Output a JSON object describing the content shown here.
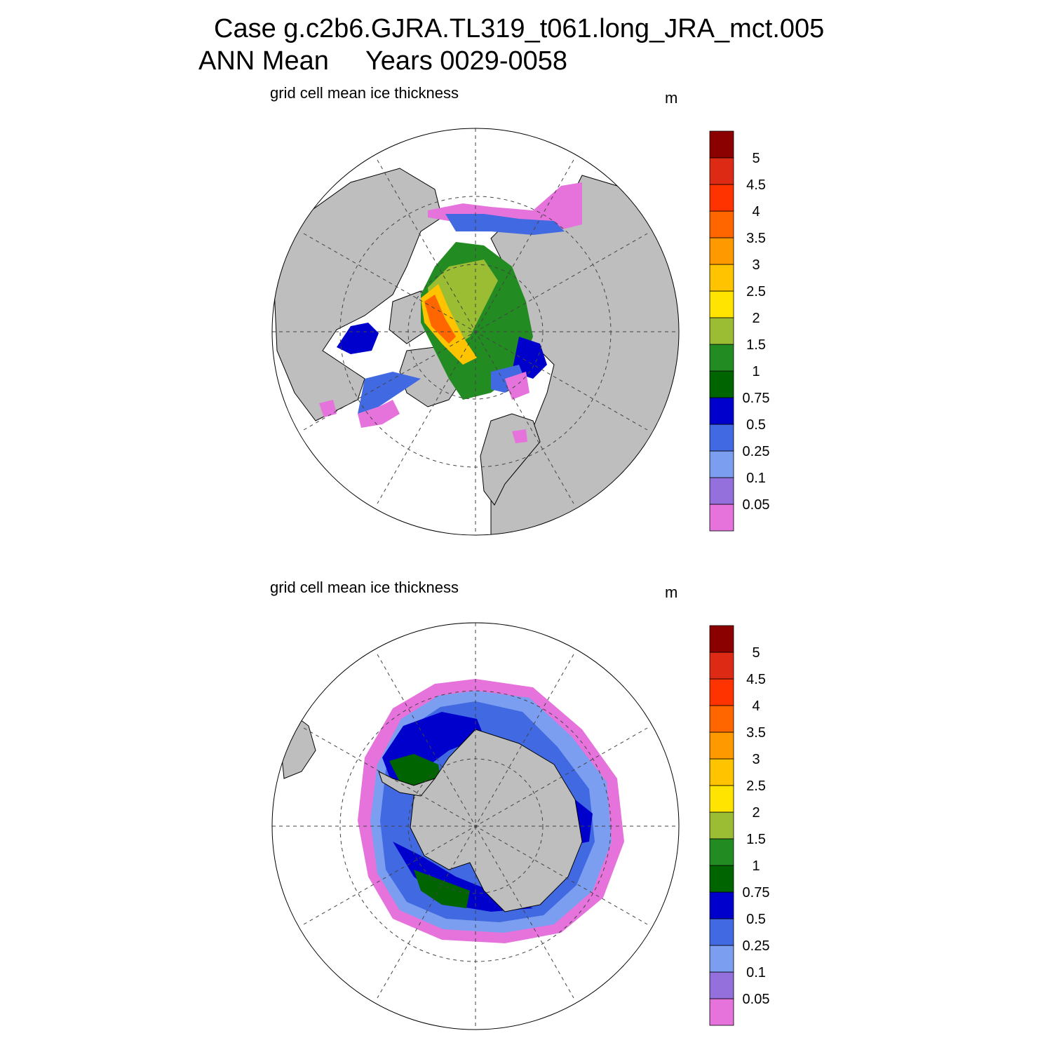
{
  "title": {
    "line1": "Case g.c2b6.GJRA.TL319_t061.long_JRA_mct.005",
    "line2": "ANN Mean     Years 0029-0058"
  },
  "colors": {
    "land": "#bebebe",
    "ocean": "#ffffff",
    "levels": [
      "#e673dc",
      "#9370db",
      "#7b9ef0",
      "#4169e1",
      "#0000cd",
      "#006400",
      "#228b22",
      "#9abd33",
      "#ffe400",
      "#ffc300",
      "#ff9900",
      "#ff6600",
      "#ff3300",
      "#dd2a14",
      "#8b0000"
    ]
  },
  "colorbar_labels": [
    "0.05",
    "0.1",
    "0.25",
    "0.5",
    "0.75",
    "1",
    "1.5",
    "2",
    "2.5",
    "3",
    "3.5",
    "4",
    "4.5",
    "5"
  ],
  "panels": [
    {
      "id": "arctic",
      "subtitle": "grid cell mean ice thickness",
      "units": "m"
    },
    {
      "id": "antarctic",
      "subtitle": "grid cell mean ice thickness",
      "units": "m"
    }
  ]
}
